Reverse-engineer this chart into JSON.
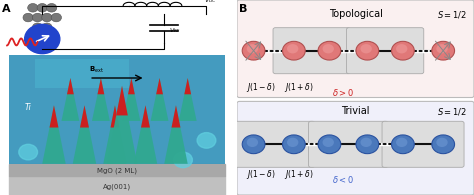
{
  "fig_width": 4.74,
  "fig_height": 1.95,
  "dpi": 100,
  "top_title": "Topological",
  "bottom_title": "Trivial",
  "spin_label": "S = 1/2",
  "top_delta_label": "δ > 0",
  "bottom_delta_label": "δ < 0",
  "coupling_label_1": "J(1 − δ)",
  "coupling_label_2": "J(1 + δ)",
  "top_node_color": "#E07878",
  "top_node_edge": "#B05050",
  "top_node_color2": "#D06060",
  "bottom_node_color": "#4A78BB",
  "bottom_node_edge": "#2A52A0",
  "box_facecolor": "#DDDDDD",
  "box_edgecolor": "#AAAAAA",
  "top_panel_bg": "#FAF0F0",
  "bottom_panel_bg": "#F0F0FA",
  "panel_edge": "#BBBBBB",
  "top_delta_color": "#CC2222",
  "bottom_delta_color": "#4466CC",
  "arrow_color": "#999999",
  "chain_color": "#111111",
  "label_A": "A",
  "label_B": "B"
}
